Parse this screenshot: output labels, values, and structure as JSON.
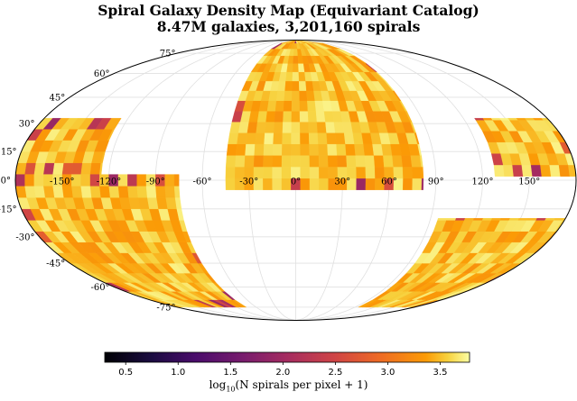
{
  "chart_data": {
    "type": "heatmap",
    "projection": "mollweide",
    "title": "Spiral Galaxy Density Map (Equivariant Catalog)",
    "subtitle": "8.47M galaxies, 3,201,160 spirals",
    "colorbar": {
      "label_prefix": "log",
      "label_sub": "10",
      "label_suffix": "(N spirals per pixel + 1)",
      "range": [
        0.3,
        3.78
      ],
      "ticks": [
        "0.5",
        "1.0",
        "1.5",
        "2.0",
        "2.5",
        "3.0",
        "3.5"
      ],
      "tick_values": [
        0.5,
        1.0,
        1.5,
        2.0,
        2.5,
        3.0,
        3.5
      ],
      "colormap": "inferno"
    },
    "longitude_ticks": [
      "-150°",
      "-120°",
      "-90°",
      "-60°",
      "-30°",
      "0°",
      "30°",
      "60°",
      "90°",
      "120°",
      "150°"
    ],
    "longitude_values": [
      -150,
      -120,
      -90,
      -60,
      -30,
      0,
      30,
      60,
      90,
      120,
      150
    ],
    "latitude_ticks": [
      "75°",
      "60°",
      "45°",
      "30°",
      "15°",
      "0°",
      "-15°",
      "-30°",
      "-45°",
      "-60°",
      "-75°"
    ],
    "latitude_values": [
      75,
      60,
      45,
      30,
      15,
      0,
      -15,
      -30,
      -45,
      -60,
      -75
    ],
    "grid": true,
    "footprint": [
      {
        "name": "north-cap",
        "lon": [
          -45,
          82
        ],
        "lat": [
          -5,
          90
        ]
      },
      {
        "name": "west-north-band",
        "lon": [
          -180,
          -125
        ],
        "lat": [
          3,
          33
        ]
      },
      {
        "name": "east-north-band",
        "lon": [
          128,
          180
        ],
        "lat": [
          2,
          33
        ]
      },
      {
        "name": "west-south-band",
        "lon": [
          -180,
          -75
        ],
        "lat": [
          -75,
          3
        ]
      },
      {
        "name": "east-south-band",
        "lon": [
          95,
          180
        ],
        "lat": [
          -75,
          -20
        ]
      }
    ],
    "typical_value": 3.5,
    "min_value": 0.3,
    "max_value": 3.78
  }
}
